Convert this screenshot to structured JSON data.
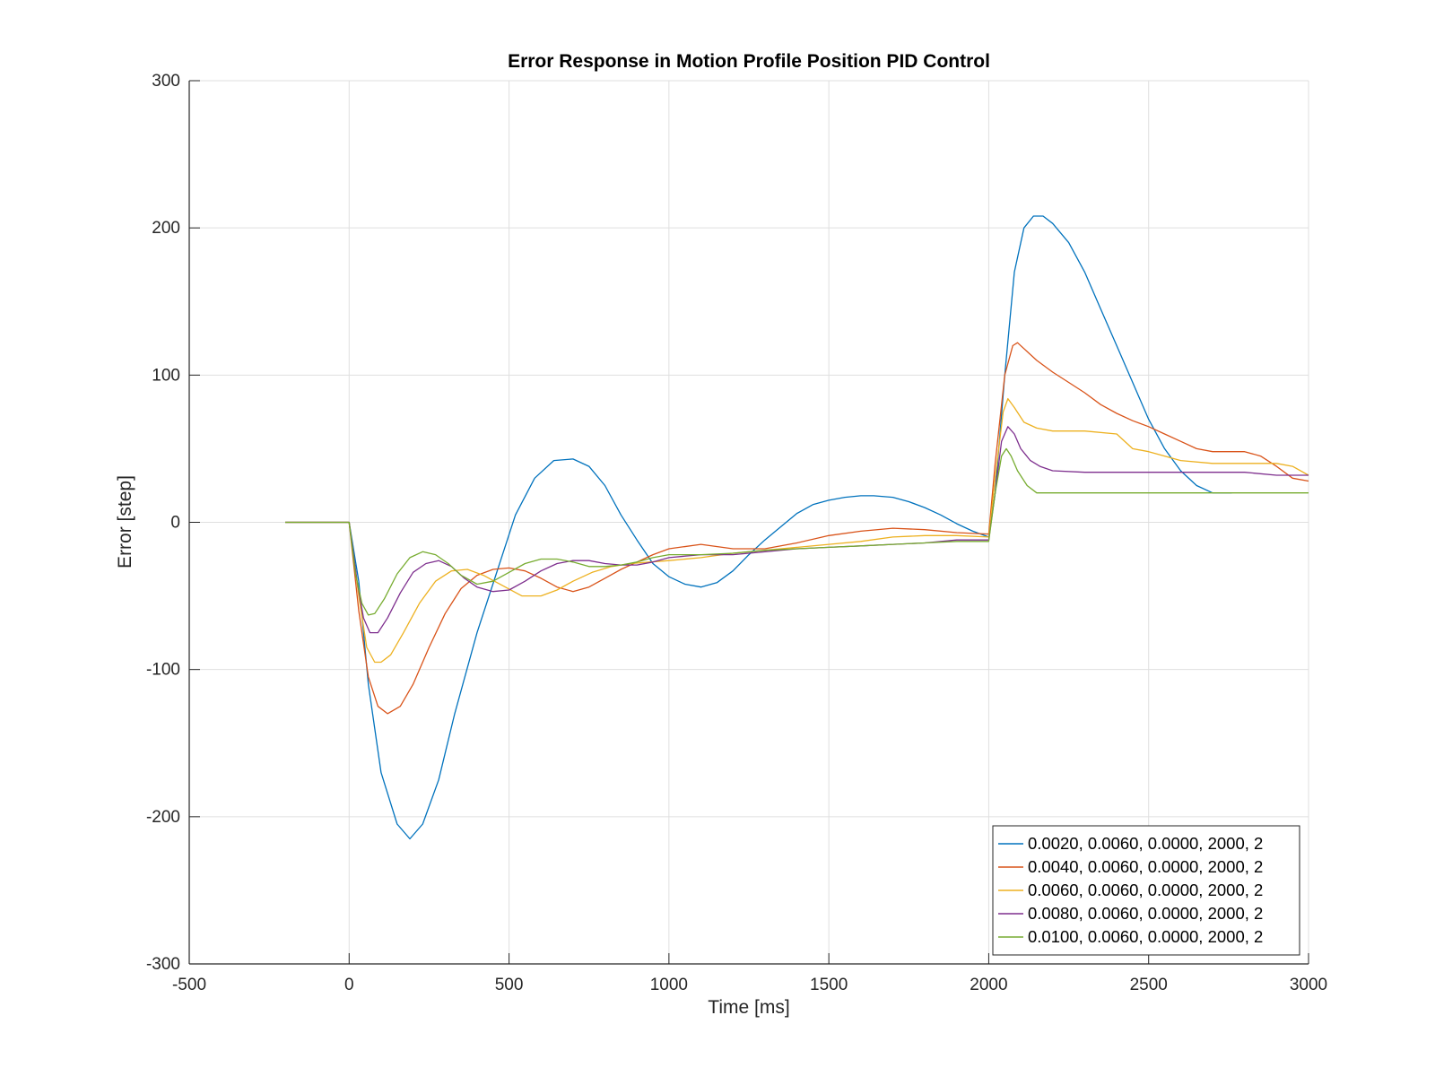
{
  "chart_data": {
    "type": "line",
    "title": "Error Response in Motion Profile Position PID Control",
    "xlabel": "Time [ms]",
    "ylabel": "Error [step]",
    "xlim": [
      -500,
      3000
    ],
    "ylim": [
      -300,
      300
    ],
    "xticks": [
      -500,
      0,
      500,
      1000,
      1500,
      2000,
      2500,
      3000
    ],
    "yticks": [
      -300,
      -200,
      -100,
      0,
      100,
      200,
      300
    ],
    "grid": true,
    "legend_position": "bottom-right",
    "series": [
      {
        "name": "0.0020, 0.0060, 0.0000, 2000, 2",
        "color": "#0072bd",
        "x": [
          -200,
          0,
          30,
          60,
          100,
          150,
          190,
          230,
          280,
          330,
          400,
          460,
          520,
          580,
          640,
          700,
          750,
          800,
          850,
          900,
          950,
          1000,
          1050,
          1100,
          1150,
          1200,
          1250,
          1300,
          1350,
          1400,
          1450,
          1500,
          1550,
          1600,
          1640,
          1700,
          1750,
          1800,
          1850,
          1900,
          1950,
          2000,
          2020,
          2050,
          2080,
          2110,
          2140,
          2170,
          2200,
          2250,
          2300,
          2350,
          2400,
          2450,
          2500,
          2550,
          2600,
          2650,
          2700,
          2760
        ],
        "y": [
          0,
          0,
          -40,
          -110,
          -170,
          -205,
          -215,
          -205,
          -175,
          -130,
          -75,
          -35,
          5,
          30,
          42,
          43,
          38,
          25,
          5,
          -12,
          -28,
          -37,
          -42,
          -44,
          -41,
          -33,
          -22,
          -12,
          -3,
          6,
          12,
          15,
          17,
          18,
          18,
          17,
          14,
          10,
          5,
          -1,
          -6,
          -10,
          20,
          100,
          170,
          200,
          208,
          208,
          203,
          190,
          170,
          145,
          120,
          95,
          70,
          50,
          35,
          25,
          20,
          20
        ]
      },
      {
        "name": "0.0040, 0.0060, 0.0000, 2000, 2",
        "color": "#d95319",
        "x": [
          -200,
          0,
          30,
          60,
          90,
          120,
          160,
          200,
          250,
          300,
          350,
          400,
          450,
          500,
          550,
          600,
          650,
          700,
          750,
          800,
          850,
          900,
          950,
          1000,
          1100,
          1200,
          1300,
          1400,
          1500,
          1600,
          1700,
          1800,
          1900,
          2000,
          2020,
          2050,
          2075,
          2090,
          2110,
          2150,
          2200,
          2250,
          2300,
          2350,
          2400,
          2450,
          2500,
          2550,
          2600,
          2650,
          2700,
          2750,
          2800,
          2850,
          2900,
          2950,
          3000
        ],
        "y": [
          0,
          0,
          -60,
          -105,
          -125,
          -130,
          -125,
          -110,
          -85,
          -62,
          -45,
          -36,
          -32,
          -31,
          -33,
          -38,
          -44,
          -47,
          -44,
          -38,
          -32,
          -27,
          -22,
          -18,
          -15,
          -18,
          -18,
          -14,
          -9,
          -6,
          -4,
          -5,
          -7,
          -8,
          40,
          100,
          120,
          122,
          118,
          110,
          102,
          95,
          88,
          80,
          74,
          69,
          65,
          60,
          55,
          50,
          48,
          48,
          48,
          45,
          38,
          30,
          28
        ]
      },
      {
        "name": "0.0060, 0.0060, 0.0000, 2000, 2",
        "color": "#edb120",
        "x": [
          -200,
          0,
          30,
          55,
          80,
          100,
          130,
          170,
          220,
          270,
          320,
          370,
          420,
          480,
          540,
          600,
          650,
          700,
          760,
          820,
          880,
          940,
          1000,
          1100,
          1200,
          1300,
          1400,
          1500,
          1600,
          1700,
          1800,
          1900,
          2000,
          2020,
          2045,
          2060,
          2080,
          2110,
          2150,
          2200,
          2300,
          2400,
          2450,
          2500,
          2600,
          2700,
          2800,
          2900,
          2950,
          3000
        ],
        "y": [
          0,
          0,
          -50,
          -85,
          -95,
          -95,
          -90,
          -75,
          -55,
          -40,
          -33,
          -32,
          -36,
          -43,
          -50,
          -50,
          -46,
          -40,
          -34,
          -30,
          -28,
          -27,
          -26,
          -24,
          -21,
          -19,
          -17,
          -15,
          -13,
          -10,
          -9,
          -9,
          -10,
          30,
          75,
          84,
          78,
          68,
          64,
          62,
          62,
          60,
          50,
          48,
          42,
          40,
          40,
          40,
          38,
          32
        ]
      },
      {
        "name": "0.0080, 0.0060, 0.0000, 2000, 2",
        "color": "#7e2f8e",
        "x": [
          -200,
          0,
          25,
          45,
          65,
          90,
          120,
          160,
          200,
          240,
          280,
          320,
          360,
          400,
          450,
          500,
          550,
          600,
          650,
          700,
          750,
          800,
          850,
          900,
          950,
          1000,
          1100,
          1200,
          1300,
          1400,
          1500,
          1600,
          1700,
          1800,
          1900,
          2000,
          2020,
          2040,
          2060,
          2080,
          2100,
          2130,
          2160,
          2200,
          2300,
          2400,
          2500,
          2600,
          2700,
          2800,
          2900,
          3000
        ],
        "y": [
          0,
          0,
          -40,
          -65,
          -75,
          -75,
          -65,
          -48,
          -34,
          -28,
          -26,
          -30,
          -38,
          -44,
          -47,
          -46,
          -40,
          -33,
          -28,
          -26,
          -26,
          -28,
          -29,
          -29,
          -27,
          -24,
          -22,
          -22,
          -20,
          -18,
          -17,
          -16,
          -15,
          -14,
          -12,
          -12,
          20,
          55,
          65,
          60,
          50,
          42,
          38,
          35,
          34,
          34,
          34,
          34,
          34,
          34,
          32,
          32
        ]
      },
      {
        "name": "0.0100, 0.0060, 0.0000, 2000, 2",
        "color": "#77ac30",
        "x": [
          -200,
          0,
          20,
          40,
          60,
          80,
          110,
          150,
          190,
          230,
          270,
          310,
          350,
          400,
          450,
          500,
          550,
          600,
          650,
          700,
          750,
          800,
          850,
          900,
          950,
          1000,
          1100,
          1200,
          1300,
          1400,
          1500,
          1600,
          1700,
          1800,
          1900,
          2000,
          2020,
          2040,
          2055,
          2070,
          2090,
          2120,
          2150,
          2200,
          2250,
          2300,
          2500,
          2700,
          3000
        ],
        "y": [
          0,
          0,
          -35,
          -55,
          -63,
          -62,
          -52,
          -35,
          -24,
          -20,
          -22,
          -28,
          -36,
          -42,
          -40,
          -34,
          -28,
          -25,
          -25,
          -27,
          -30,
          -30,
          -29,
          -27,
          -24,
          -22,
          -22,
          -21,
          -19,
          -18,
          -17,
          -16,
          -15,
          -14,
          -13,
          -13,
          20,
          45,
          50,
          45,
          35,
          25,
          20,
          20,
          20,
          20,
          20,
          20,
          20
        ]
      }
    ]
  }
}
